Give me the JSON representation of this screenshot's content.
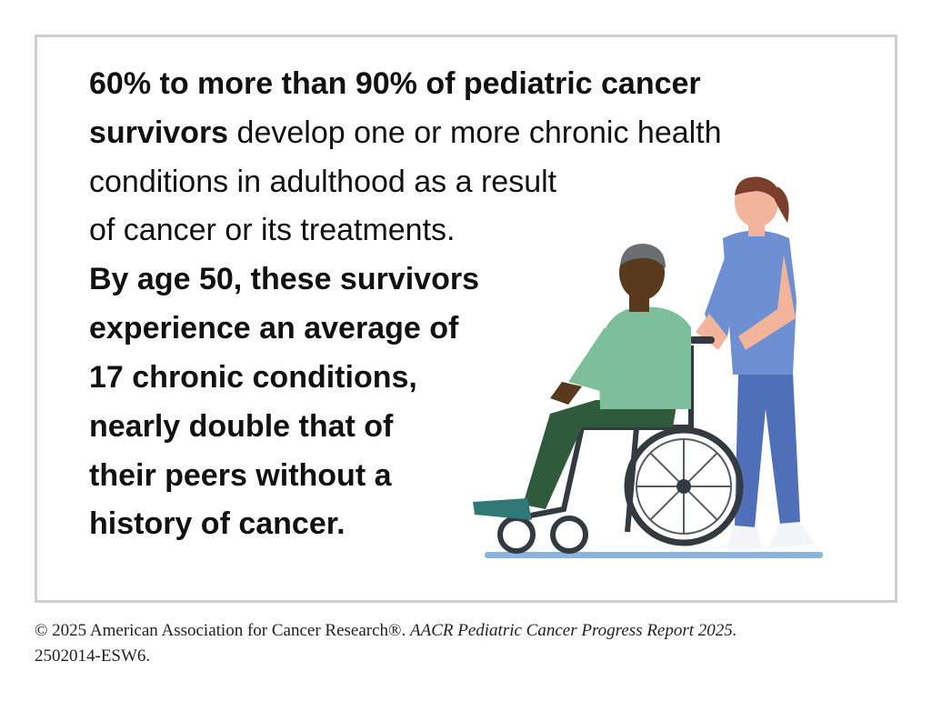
{
  "body": {
    "lines": [
      {
        "bold": "60% to more than 90% of pediatric cancer"
      },
      {
        "bold": "survivors",
        "regular": "develop one or more chronic health"
      },
      {
        "regular": "conditions in adulthood as a result"
      },
      {
        "regular": "of cancer or its treatments."
      },
      {
        "bold": "By age 50, these survivors"
      },
      {
        "bold": "experience an average of"
      },
      {
        "bold": "17 chronic conditions,"
      },
      {
        "bold": "nearly double that of"
      },
      {
        "bold": "their peers without a"
      },
      {
        "bold": "history of cancer."
      }
    ]
  },
  "footer": {
    "copyright": "© 2025 American Association for Cancer Research®.",
    "report": "AACR Pediatric Cancer Progress Report 2025.",
    "code": "2502014-ESW6."
  }
}
